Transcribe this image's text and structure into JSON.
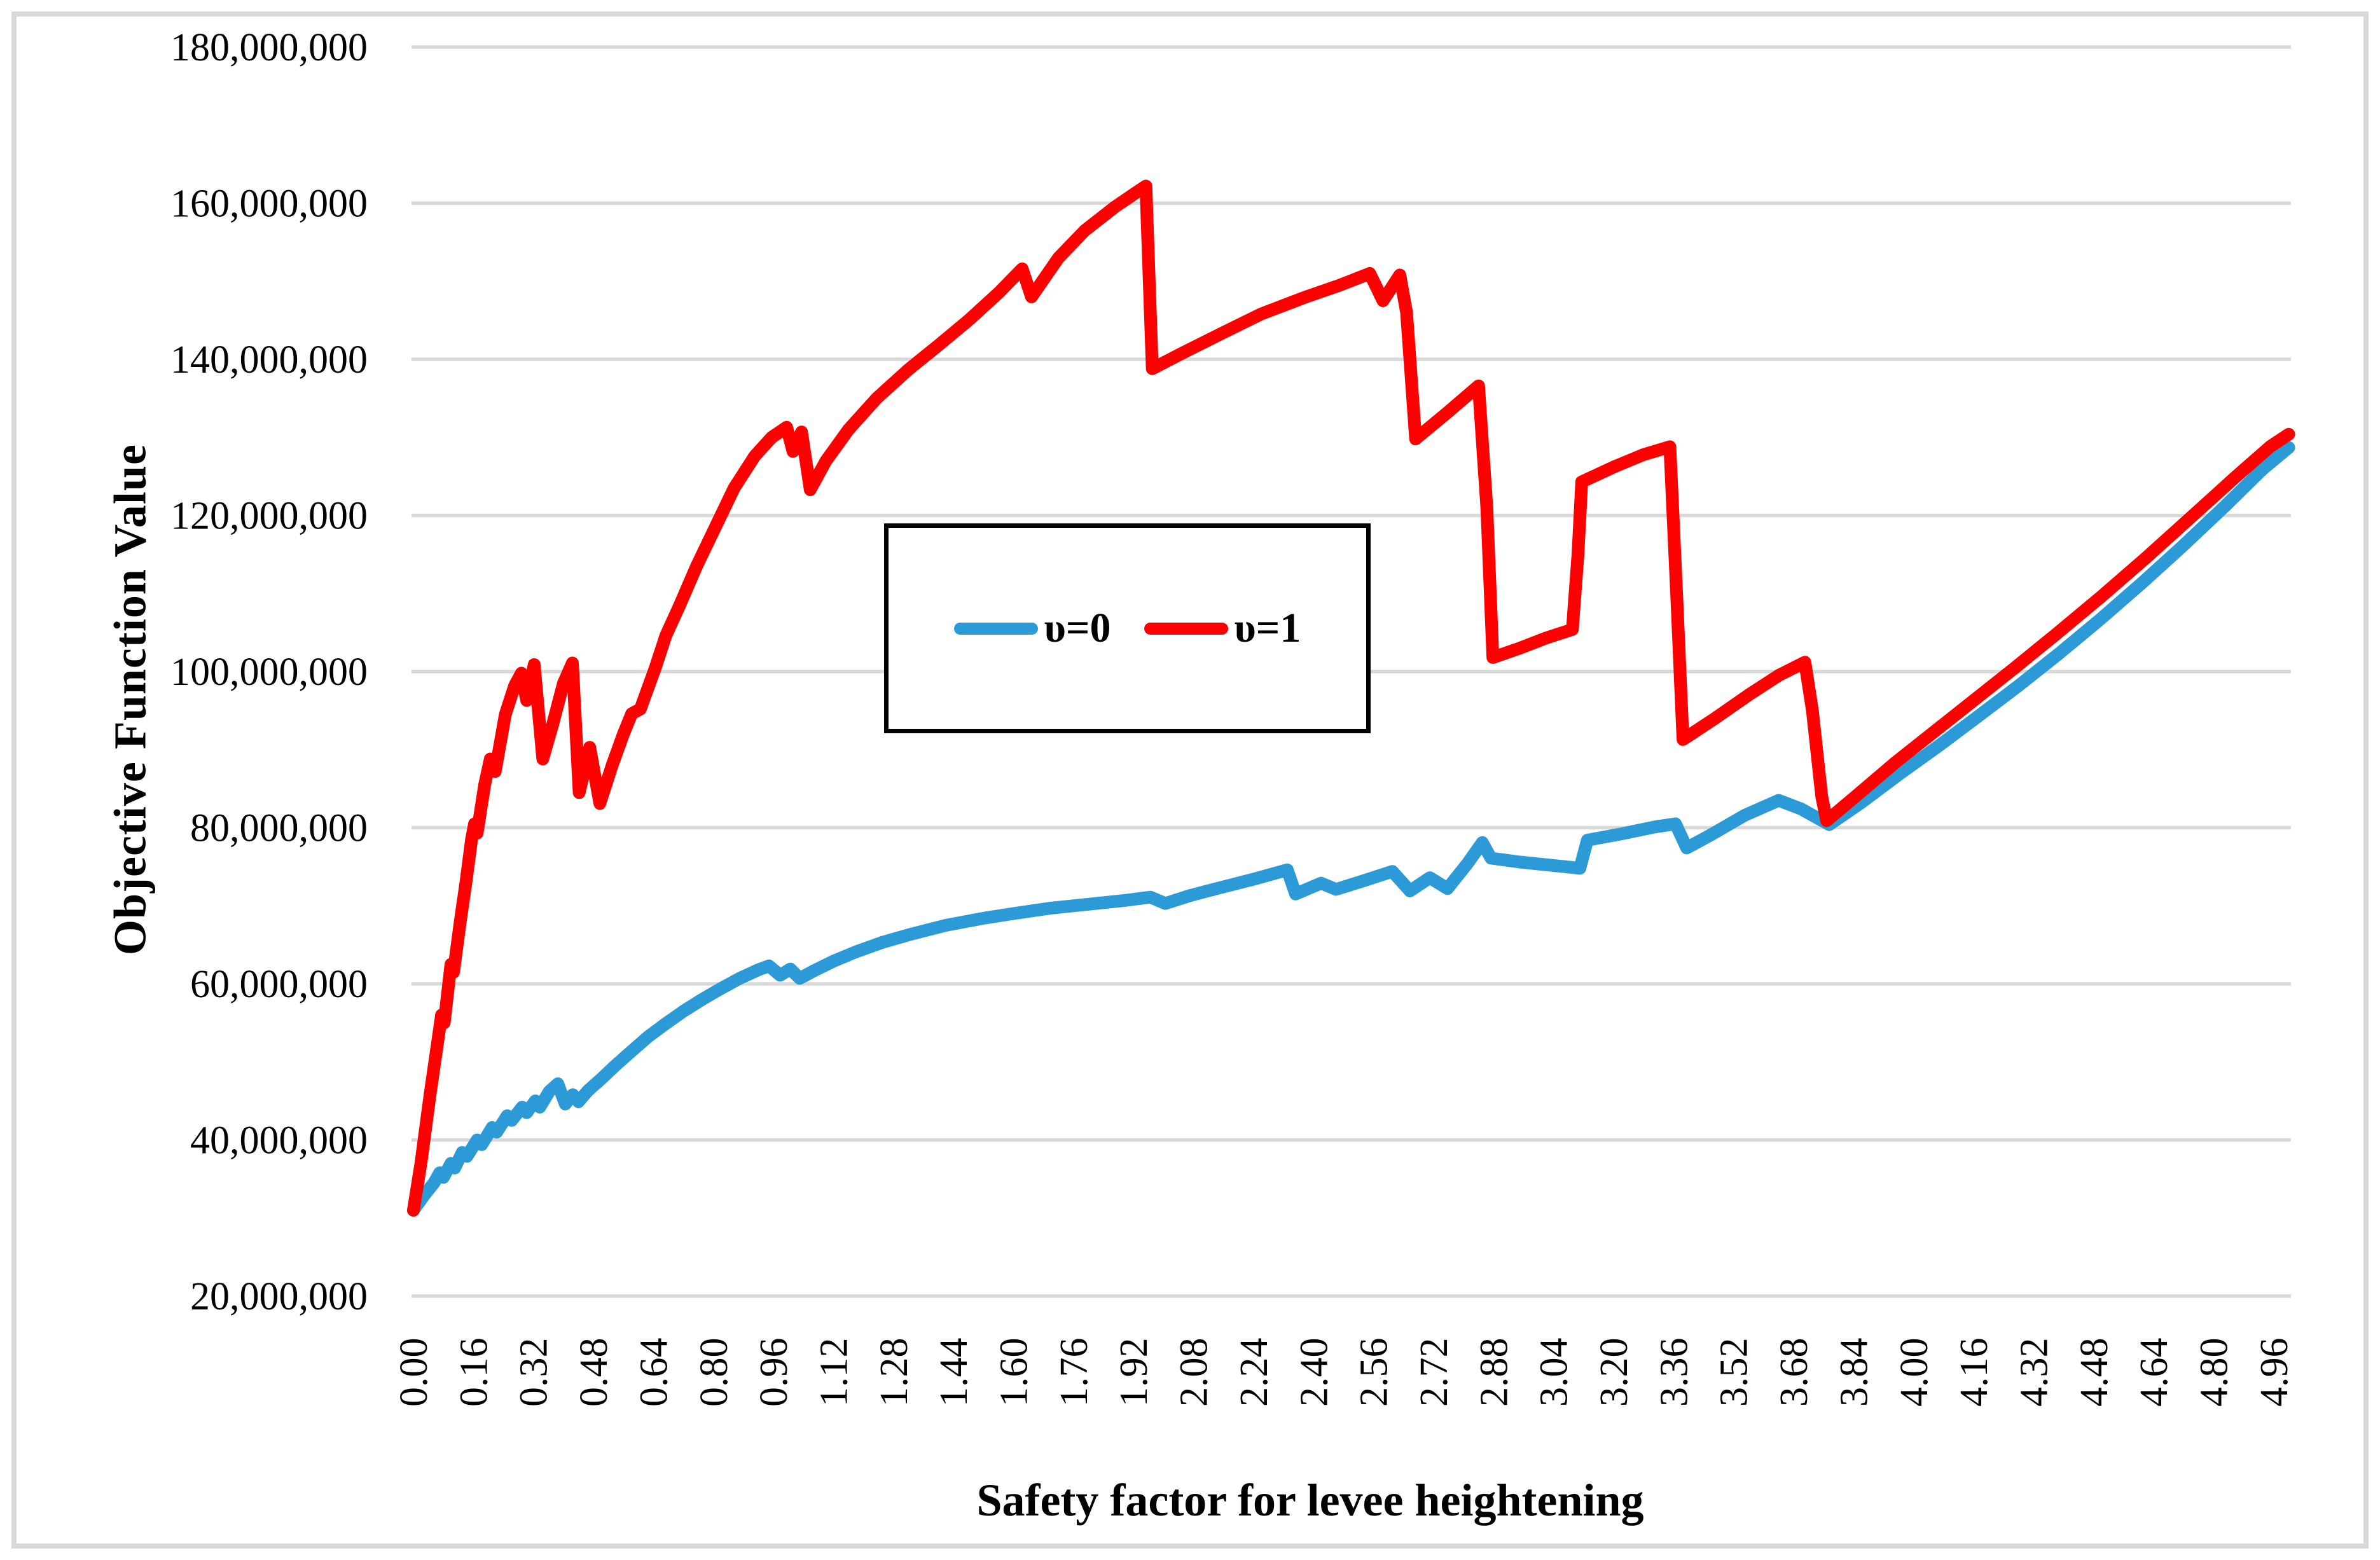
{
  "figure": {
    "background_color": "#ffffff",
    "frame_border_color": "#d9d9d9",
    "gridline_color": "#d9d9d9"
  },
  "chart_data": {
    "type": "line",
    "title": "",
    "xlabel": "Safety factor for levee heightening",
    "ylabel": "Objective Function Value",
    "grid": "horizontal",
    "legend_position": "center-middle-boxed",
    "x_axis": {
      "min": 0.0,
      "max": 5.04,
      "tick_step": 0.16,
      "tick_labels": [
        "0.00",
        "0.16",
        "0.32",
        "0.48",
        "0.64",
        "0.80",
        "0.96",
        "1.12",
        "1.28",
        "1.44",
        "1.60",
        "1.76",
        "1.92",
        "2.08",
        "2.24",
        "2.40",
        "2.56",
        "2.72",
        "2.88",
        "3.04",
        "3.20",
        "3.36",
        "3.52",
        "3.68",
        "3.84",
        "4.00",
        "4.16",
        "4.32",
        "4.48",
        "4.64",
        "4.80",
        "4.96"
      ],
      "tick_label_rotation_deg": -90
    },
    "y_axis": {
      "min": 20000000,
      "max": 180000000,
      "tick_step": 20000000,
      "tick_labels": [
        "20,000,000",
        "40,000,000",
        "60,000,000",
        "80,000,000",
        "100,000,000",
        "120,000,000",
        "140,000,000",
        "160,000,000",
        "180,000,000"
      ]
    },
    "value_unit_multiplier": 1000000,
    "series": [
      {
        "name": "υ=0",
        "color": "#2b9ad6",
        "points": [
          [
            0.0,
            31
          ],
          [
            0.03,
            33
          ],
          [
            0.055,
            34.5
          ],
          [
            0.07,
            35.8
          ],
          [
            0.08,
            35.2
          ],
          [
            0.1,
            37
          ],
          [
            0.11,
            36.4
          ],
          [
            0.13,
            38.4
          ],
          [
            0.143,
            37.9
          ],
          [
            0.17,
            40
          ],
          [
            0.182,
            39.4
          ],
          [
            0.21,
            41.6
          ],
          [
            0.222,
            41
          ],
          [
            0.25,
            43.1
          ],
          [
            0.262,
            42.5
          ],
          [
            0.29,
            44.2
          ],
          [
            0.302,
            43.5
          ],
          [
            0.325,
            45
          ],
          [
            0.337,
            44.2
          ],
          [
            0.362,
            46.2
          ],
          [
            0.385,
            47.2
          ],
          [
            0.405,
            44.6
          ],
          [
            0.425,
            45.8
          ],
          [
            0.44,
            44.9
          ],
          [
            0.465,
            46.3
          ],
          [
            0.5,
            47.8
          ],
          [
            0.54,
            49.6
          ],
          [
            0.58,
            51.3
          ],
          [
            0.625,
            53.2
          ],
          [
            0.67,
            54.8
          ],
          [
            0.72,
            56.5
          ],
          [
            0.77,
            58
          ],
          [
            0.82,
            59.4
          ],
          [
            0.87,
            60.7
          ],
          [
            0.92,
            61.8
          ],
          [
            0.948,
            62.3
          ],
          [
            0.978,
            61.1
          ],
          [
            1.005,
            61.9
          ],
          [
            1.03,
            60.7
          ],
          [
            1.065,
            61.6
          ],
          [
            1.12,
            62.9
          ],
          [
            1.18,
            64.1
          ],
          [
            1.25,
            65.3
          ],
          [
            1.33,
            66.4
          ],
          [
            1.42,
            67.5
          ],
          [
            1.52,
            68.4
          ],
          [
            1.6,
            69
          ],
          [
            1.7,
            69.7
          ],
          [
            1.8,
            70.2
          ],
          [
            1.9,
            70.7
          ],
          [
            1.965,
            71.1
          ],
          [
            2.005,
            70.3
          ],
          [
            2.07,
            71.3
          ],
          [
            2.15,
            72.3
          ],
          [
            2.24,
            73.4
          ],
          [
            2.33,
            74.6
          ],
          [
            2.352,
            71.5
          ],
          [
            2.42,
            72.9
          ],
          [
            2.46,
            72.1
          ],
          [
            2.54,
            73.3
          ],
          [
            2.61,
            74.4
          ],
          [
            2.657,
            71.9
          ],
          [
            2.71,
            73.6
          ],
          [
            2.757,
            72.2
          ],
          [
            2.81,
            75.4
          ],
          [
            2.85,
            78.1
          ],
          [
            2.873,
            76.1
          ],
          [
            2.95,
            75.6
          ],
          [
            3.05,
            75.1
          ],
          [
            3.11,
            74.8
          ],
          [
            3.13,
            78.4
          ],
          [
            3.22,
            79.2
          ],
          [
            3.31,
            80.1
          ],
          [
            3.365,
            80.5
          ],
          [
            3.395,
            77.4
          ],
          [
            3.46,
            79.1
          ],
          [
            3.55,
            81.6
          ],
          [
            3.64,
            83.5
          ],
          [
            3.7,
            82.4
          ],
          [
            3.775,
            80.4
          ],
          [
            3.86,
            83.2
          ],
          [
            3.96,
            86.8
          ],
          [
            4.07,
            90.6
          ],
          [
            4.17,
            94.2
          ],
          [
            4.28,
            98.2
          ],
          [
            4.39,
            102.4
          ],
          [
            4.5,
            106.8
          ],
          [
            4.61,
            111.4
          ],
          [
            4.72,
            116.2
          ],
          [
            4.83,
            121.2
          ],
          [
            4.93,
            125.9
          ],
          [
            5.0,
            128.7
          ]
        ]
      },
      {
        "name": "υ=1",
        "color": "#ff0000",
        "points": [
          [
            0.0,
            31
          ],
          [
            0.02,
            37
          ],
          [
            0.045,
            46
          ],
          [
            0.06,
            51
          ],
          [
            0.075,
            56
          ],
          [
            0.082,
            55
          ],
          [
            0.1,
            62.5
          ],
          [
            0.107,
            61.5
          ],
          [
            0.125,
            68
          ],
          [
            0.14,
            73
          ],
          [
            0.155,
            78.5
          ],
          [
            0.163,
            80.5
          ],
          [
            0.17,
            79.3
          ],
          [
            0.19,
            85.5
          ],
          [
            0.205,
            88.8
          ],
          [
            0.218,
            87.2
          ],
          [
            0.245,
            94.5
          ],
          [
            0.27,
            98.2
          ],
          [
            0.288,
            99.8
          ],
          [
            0.302,
            96.3
          ],
          [
            0.322,
            100.9
          ],
          [
            0.345,
            88.8
          ],
          [
            0.37,
            93
          ],
          [
            0.4,
            98.5
          ],
          [
            0.424,
            101.1
          ],
          [
            0.442,
            84.5
          ],
          [
            0.47,
            90.3
          ],
          [
            0.497,
            83.1
          ],
          [
            0.53,
            88
          ],
          [
            0.56,
            92
          ],
          [
            0.582,
            94.6
          ],
          [
            0.605,
            95.2
          ],
          [
            0.645,
            100.5
          ],
          [
            0.673,
            104.6
          ],
          [
            0.71,
            108.5
          ],
          [
            0.755,
            113.5
          ],
          [
            0.8,
            118
          ],
          [
            0.855,
            123.5
          ],
          [
            0.91,
            127.6
          ],
          [
            0.955,
            130
          ],
          [
            0.995,
            131.3
          ],
          [
            1.012,
            128.2
          ],
          [
            1.035,
            130.7
          ],
          [
            1.058,
            123.3
          ],
          [
            1.1,
            127
          ],
          [
            1.16,
            131
          ],
          [
            1.235,
            135
          ],
          [
            1.32,
            138.7
          ],
          [
            1.4,
            141.8
          ],
          [
            1.48,
            145
          ],
          [
            1.56,
            148.5
          ],
          [
            1.623,
            151.6
          ],
          [
            1.648,
            148
          ],
          [
            1.72,
            153
          ],
          [
            1.79,
            156.5
          ],
          [
            1.87,
            159.5
          ],
          [
            1.925,
            161.3
          ],
          [
            1.953,
            162.2
          ],
          [
            1.97,
            138.8
          ],
          [
            2.05,
            140.8
          ],
          [
            2.15,
            143.2
          ],
          [
            2.26,
            145.8
          ],
          [
            2.38,
            148
          ],
          [
            2.47,
            149.5
          ],
          [
            2.55,
            151
          ],
          [
            2.585,
            147.5
          ],
          [
            2.63,
            150.8
          ],
          [
            2.648,
            146
          ],
          [
            2.672,
            129.8
          ],
          [
            2.76,
            133.3
          ],
          [
            2.84,
            136.6
          ],
          [
            2.862,
            121
          ],
          [
            2.878,
            101.8
          ],
          [
            2.95,
            103
          ],
          [
            3.02,
            104.3
          ],
          [
            3.09,
            105.4
          ],
          [
            3.105,
            115
          ],
          [
            3.115,
            124.3
          ],
          [
            3.2,
            126.2
          ],
          [
            3.28,
            127.8
          ],
          [
            3.35,
            128.8
          ],
          [
            3.368,
            110
          ],
          [
            3.385,
            91.3
          ],
          [
            3.47,
            94
          ],
          [
            3.56,
            97
          ],
          [
            3.64,
            99.5
          ],
          [
            3.71,
            101.2
          ],
          [
            3.73,
            95
          ],
          [
            3.755,
            84
          ],
          [
            3.768,
            80.9
          ],
          [
            3.85,
            84.2
          ],
          [
            3.95,
            88.3
          ],
          [
            4.06,
            92.5
          ],
          [
            4.16,
            96.3
          ],
          [
            4.27,
            100.5
          ],
          [
            4.38,
            104.8
          ],
          [
            4.5,
            109.6
          ],
          [
            4.62,
            114.6
          ],
          [
            4.74,
            119.8
          ],
          [
            4.86,
            125
          ],
          [
            4.95,
            128.8
          ],
          [
            5.0,
            130.4
          ]
        ]
      }
    ]
  },
  "legend": {
    "items": [
      {
        "label": "υ=0",
        "color": "#2b9ad6"
      },
      {
        "label": "υ=1",
        "color": "#ff0000"
      }
    ]
  }
}
